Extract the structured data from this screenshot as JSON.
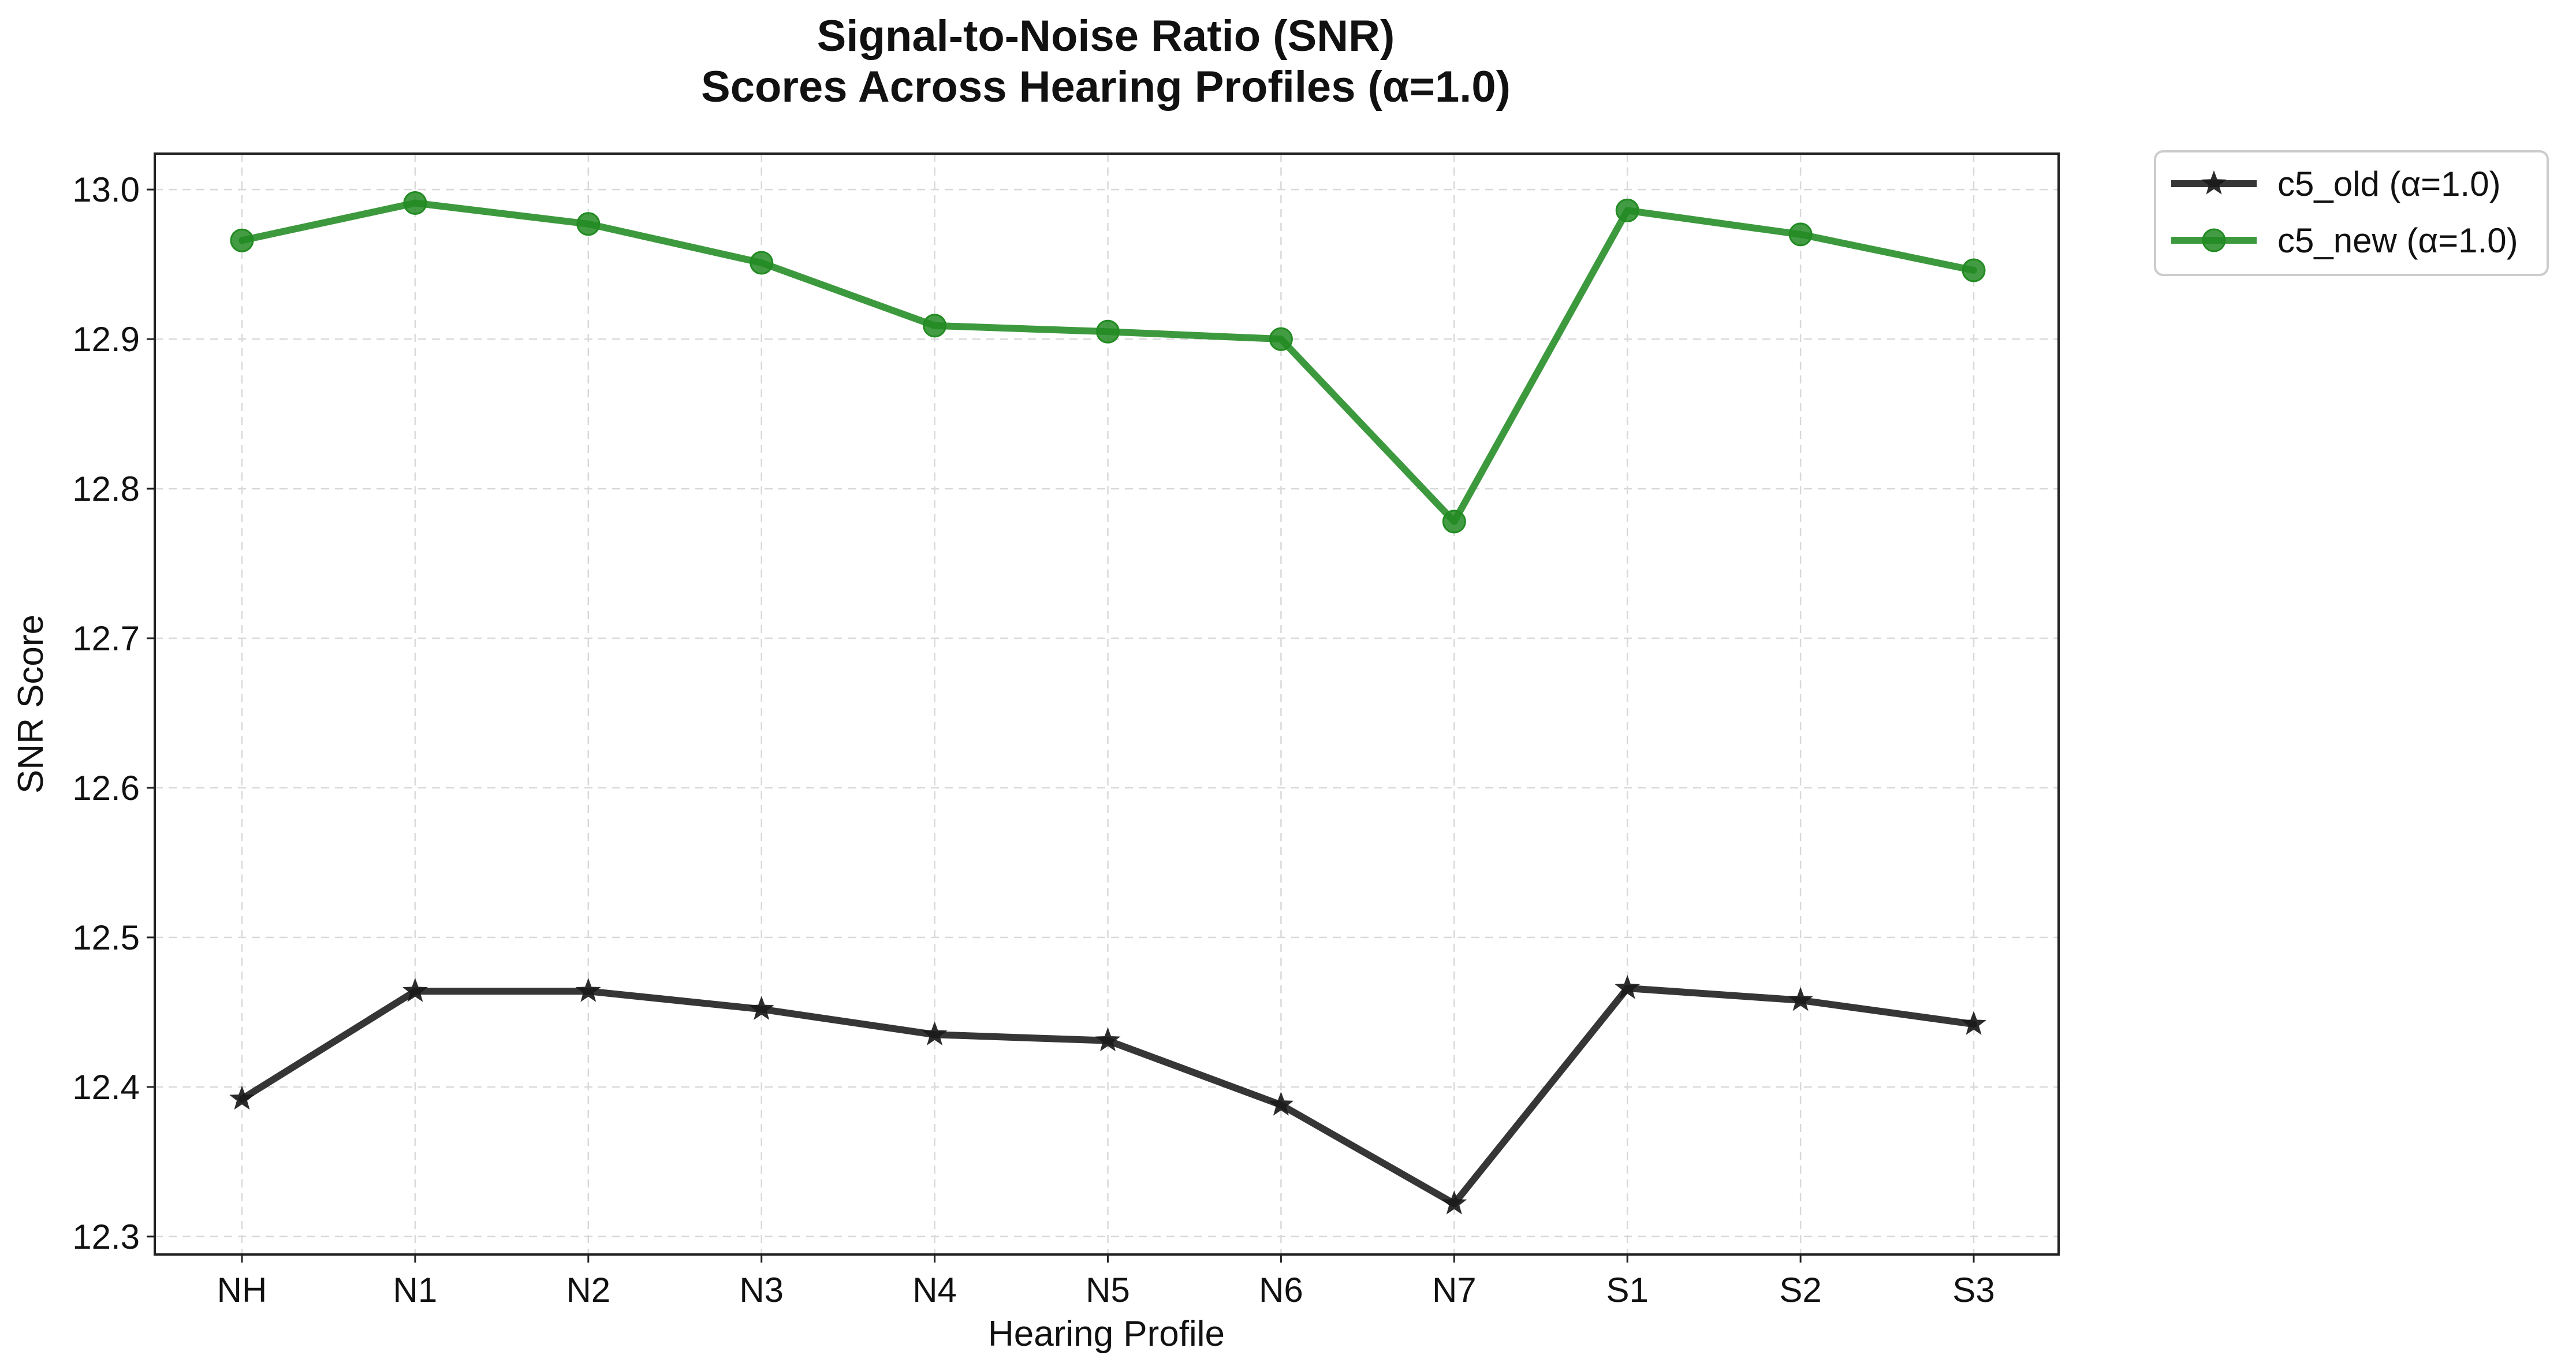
{
  "chart_data": {
    "type": "line",
    "title_lines": [
      "Signal-to-Noise Ratio (SNR)",
      "Scores Across Hearing Profiles (α=1.0)"
    ],
    "xlabel": "Hearing Profile",
    "ylabel": "SNR Score",
    "categories": [
      "NH",
      "N1",
      "N2",
      "N3",
      "N4",
      "N5",
      "N6",
      "N7",
      "S1",
      "S2",
      "S3"
    ],
    "ylim": [
      12.288,
      13.024
    ],
    "yticks": [
      12.3,
      12.4,
      12.5,
      12.6,
      12.7,
      12.8,
      12.9,
      13.0
    ],
    "ytick_labels": [
      "12.3",
      "12.4",
      "12.5",
      "12.6",
      "12.7",
      "12.8",
      "12.9",
      "13.0"
    ],
    "grid": true,
    "legend_position": "outside top-right",
    "series": [
      {
        "name": "c5_old (α=1.0)",
        "color": "#1a1a1a",
        "marker": "star",
        "values": [
          12.392,
          12.464,
          12.464,
          12.452,
          12.435,
          12.431,
          12.388,
          12.322,
          12.466,
          12.458,
          12.442
        ]
      },
      {
        "name": "c5_new (α=1.0)",
        "color": "#228b22",
        "marker": "circle",
        "values": [
          12.966,
          12.991,
          12.977,
          12.951,
          12.909,
          12.905,
          12.9,
          12.778,
          12.986,
          12.97,
          12.946
        ]
      }
    ]
  }
}
